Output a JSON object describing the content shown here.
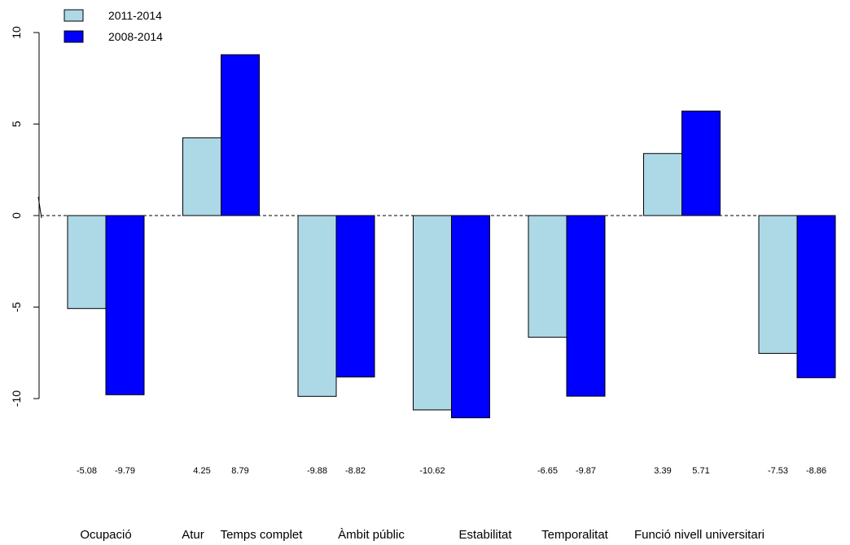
{
  "chart_data": {
    "type": "bar",
    "categories": [
      "Ocupació",
      "Atur",
      "Temps complet",
      "Àmbit públic",
      "Estabilitat",
      "Temporalitat",
      "Funció nivell universitari"
    ],
    "series": [
      {
        "name": "2011-2014",
        "color": "#add8e6",
        "values": [
          -5.08,
          4.25,
          -9.88,
          -10.62,
          -6.65,
          3.39,
          -7.53
        ],
        "labels": [
          "-5.08",
          "4.25",
          "-9.88",
          "-10.62",
          "-6.65",
          "3.39",
          "-7.53"
        ]
      },
      {
        "name": "2008-2014",
        "color": "#0000ff",
        "values": [
          -9.79,
          8.79,
          -8.82,
          -11.05,
          -9.87,
          5.71,
          -8.86
        ],
        "labels": [
          "-9.79",
          "8.79",
          "-8.82",
          "",
          "-9.87",
          "5.71",
          "-8.86"
        ]
      }
    ],
    "yticks": [
      {
        "value": 10,
        "label": "10"
      },
      {
        "value": 5,
        "label": "5"
      },
      {
        "value": 0,
        "label": "0"
      },
      {
        "value": -5,
        "label": "-5"
      },
      {
        "value": -10,
        "label": "-10"
      }
    ],
    "ylim": [
      -11.05,
      10
    ],
    "reference_line": 0,
    "legend_position": "top-left",
    "grid": false
  }
}
